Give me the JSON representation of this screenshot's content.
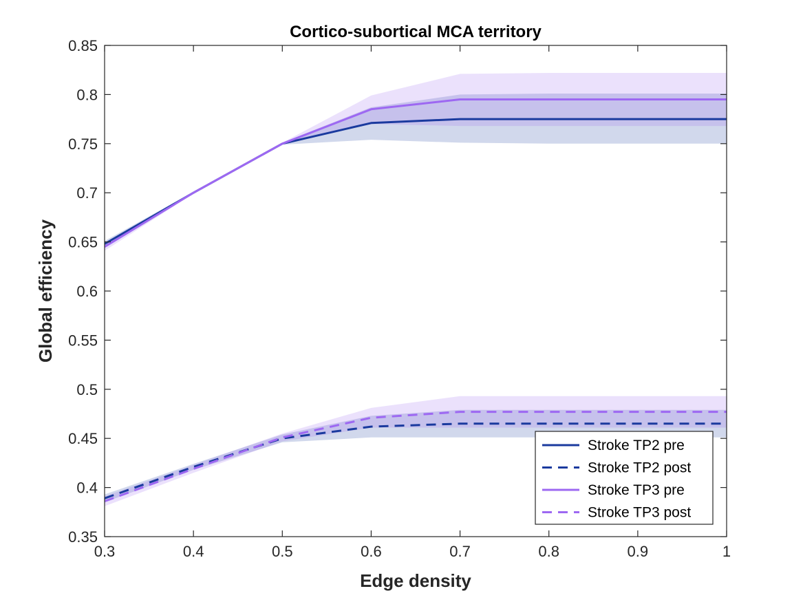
{
  "chart_data": {
    "type": "line",
    "title": "Cortico-subortical MCA territory",
    "xlabel": "Edge density",
    "ylabel": "Global efficiency",
    "xlim": [
      0.3,
      1
    ],
    "ylim": [
      0.35,
      0.85
    ],
    "xticks": [
      0.3,
      0.4,
      0.5,
      0.6,
      0.7,
      0.8,
      0.9,
      1
    ],
    "xtick_labels": [
      "0.3",
      "0.4",
      "0.5",
      "0.6",
      "0.7",
      "0.8",
      "0.9",
      "1"
    ],
    "yticks": [
      0.35,
      0.4,
      0.45,
      0.5,
      0.55,
      0.6,
      0.65,
      0.7,
      0.75,
      0.8,
      0.85
    ],
    "ytick_labels": [
      "0.35",
      "0.4",
      "0.45",
      "0.5",
      "0.55",
      "0.6",
      "0.65",
      "0.7",
      "0.75",
      "0.8",
      "0.85"
    ],
    "grid": false,
    "legend_position": "bottom-right",
    "x": [
      0.3,
      0.4,
      0.5,
      0.6,
      0.7,
      0.8,
      0.9,
      1.0
    ],
    "series": [
      {
        "name": "Stroke TP2 pre",
        "style": "solid",
        "color": "#1a3a9e",
        "values": [
          0.648,
          0.7,
          0.75,
          0.771,
          0.775,
          0.775,
          0.775,
          0.775
        ],
        "lower": [
          0.645,
          0.699,
          0.749,
          0.754,
          0.751,
          0.75,
          0.75,
          0.75
        ],
        "upper": [
          0.651,
          0.701,
          0.751,
          0.787,
          0.8,
          0.801,
          0.801,
          0.801
        ]
      },
      {
        "name": "Stroke TP2 post",
        "style": "dashed",
        "color": "#1a3a9e",
        "values": [
          0.389,
          0.421,
          0.45,
          0.462,
          0.465,
          0.465,
          0.465,
          0.465
        ],
        "lower": [
          0.385,
          0.418,
          0.446,
          0.451,
          0.451,
          0.451,
          0.451,
          0.451
        ],
        "upper": [
          0.393,
          0.424,
          0.454,
          0.473,
          0.479,
          0.479,
          0.479,
          0.479
        ]
      },
      {
        "name": "Stroke TP3 pre",
        "style": "solid",
        "color": "#9d68f2",
        "values": [
          0.645,
          0.7,
          0.75,
          0.785,
          0.795,
          0.795,
          0.795,
          0.795
        ],
        "lower": [
          0.641,
          0.699,
          0.749,
          0.77,
          0.768,
          0.768,
          0.768,
          0.768
        ],
        "upper": [
          0.649,
          0.701,
          0.751,
          0.799,
          0.821,
          0.822,
          0.822,
          0.822
        ]
      },
      {
        "name": "Stroke TP3 post",
        "style": "dashed",
        "color": "#9d68f2",
        "values": [
          0.386,
          0.419,
          0.451,
          0.471,
          0.477,
          0.477,
          0.477,
          0.477
        ],
        "lower": [
          0.381,
          0.415,
          0.447,
          0.461,
          0.461,
          0.461,
          0.461,
          0.461
        ],
        "upper": [
          0.391,
          0.423,
          0.455,
          0.481,
          0.493,
          0.493,
          0.493,
          0.493
        ]
      }
    ]
  }
}
